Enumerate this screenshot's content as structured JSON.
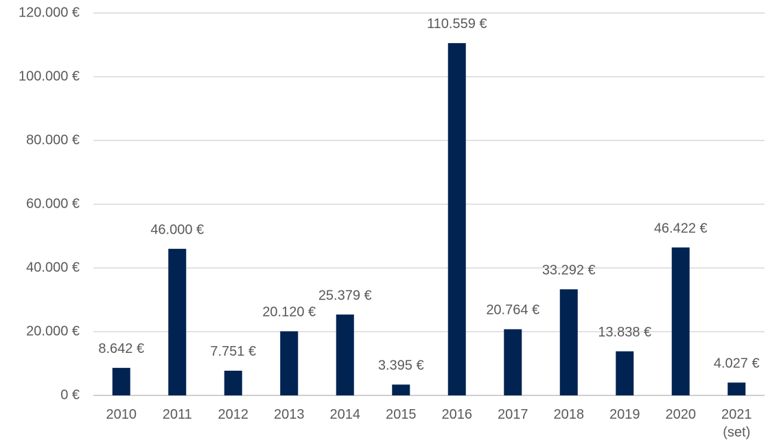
{
  "chart_data": {
    "type": "bar",
    "categories": [
      "2010",
      "2011",
      "2012",
      "2013",
      "2014",
      "2015",
      "2016",
      "2017",
      "2018",
      "2019",
      "2020",
      "2021 (set)"
    ],
    "values": [
      8642,
      46000,
      7751,
      20120,
      25379,
      3395,
      110559,
      20764,
      33292,
      13838,
      46422,
      4027
    ],
    "value_labels": [
      "8.642 €",
      "46.000 €",
      "7.751 €",
      "20.120 €",
      "25.379 €",
      "3.395 €",
      "110.559 €",
      "20.764 €",
      "33.292 €",
      "13.838 €",
      "46.422 €",
      "4.027 €"
    ],
    "color": "#002352",
    "ylim": [
      0,
      120000
    ],
    "yticks": [
      {
        "value": 0,
        "label": "0 €"
      },
      {
        "value": 20000,
        "label": "20.000 €"
      },
      {
        "value": 40000,
        "label": "40.000 €"
      },
      {
        "value": 60000,
        "label": "60.000 €"
      },
      {
        "value": 80000,
        "label": "80.000 €"
      },
      {
        "value": 100000,
        "label": "100.000 €"
      },
      {
        "value": 120000,
        "label": "120.000 €"
      }
    ],
    "grid": true
  }
}
